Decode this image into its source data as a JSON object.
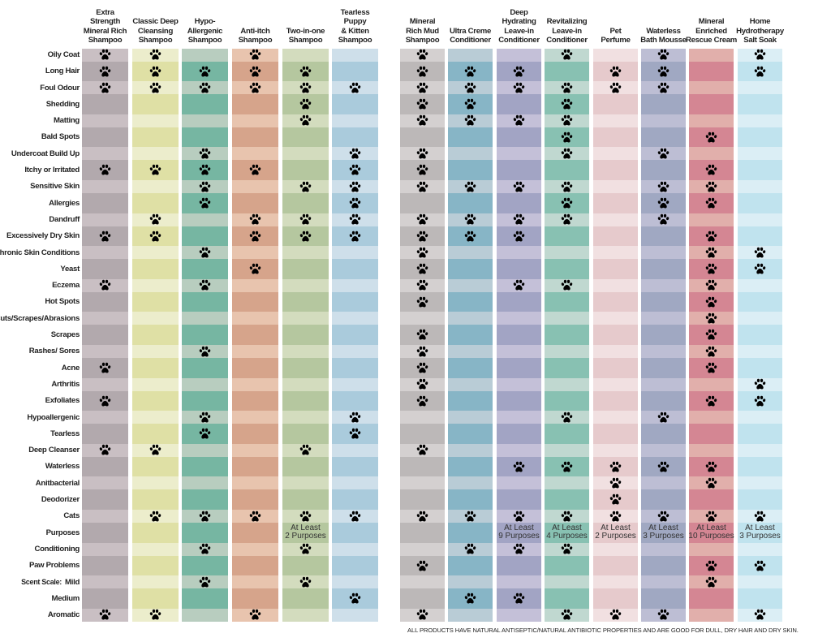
{
  "columns": [
    {
      "name": "Extra Strength Mineral Rich Shampoo",
      "lines": [
        "Extra",
        "Strength",
        "Mineral Rich",
        "Shampoo"
      ],
      "light": "#c9bfc3",
      "dark": "#b2a9ad"
    },
    {
      "name": "Classic Deep Cleansing Shampoo",
      "lines": [
        "Classic Deep",
        "Cleansing",
        "Shampoo"
      ],
      "light": "#ecedcc",
      "dark": "#dfe0a5"
    },
    {
      "name": "Hypo-Allergenic Shampoo",
      "lines": [
        "Hypo-",
        "Allergenic",
        "Shampoo"
      ],
      "light": "#b8cdbf",
      "dark": "#76b6a2"
    },
    {
      "name": "Anti-itch Shampoo",
      "lines": [
        "Anti-itch",
        "Shampoo"
      ],
      "light": "#e8c4ae",
      "dark": "#d6a48b"
    },
    {
      "name": "Two-in-one Shampoo",
      "lines": [
        "Two-in-one",
        "Shampoo"
      ],
      "light": "#d3dcbe",
      "dark": "#b5c79f"
    },
    {
      "name": "Tearless Puppy & Kitten Shampoo",
      "lines": [
        "Tearless",
        "Puppy",
        "& Kitten",
        "Shampoo"
      ],
      "light": "#cedfea",
      "dark": "#aacbdc"
    },
    {
      "name": "Mineral Rich Mud Shampoo",
      "lines": [
        "Mineral",
        "Rich Mud",
        "Shampoo"
      ],
      "light": "#d4d0d0",
      "dark": "#bcb8b8"
    },
    {
      "name": "Ultra Creme Conditioner",
      "lines": [
        "Ultra Creme",
        "Conditioner"
      ],
      "light": "#b9ccd6",
      "dark": "#87b5c6"
    },
    {
      "name": "Deep Hydrating Leave-in Conditioner",
      "lines": [
        "Deep",
        "Hydrating",
        "Leave-in",
        "Conditioner"
      ],
      "light": "#c4c0d8",
      "dark": "#a2a4c4"
    },
    {
      "name": "Revitalizing Leave-in Conditioner",
      "lines": [
        "Revitalizing",
        "Leave-in",
        "Conditioner"
      ],
      "light": "#c0d8d0",
      "dark": "#88c1b2"
    },
    {
      "name": "Pet Perfume",
      "lines": [
        "Pet",
        "Perfume"
      ],
      "light": "#f1e0e1",
      "dark": "#e6cacc"
    },
    {
      "name": "Waterless Bath Mousse",
      "lines": [
        "Waterless",
        "Bath Mousse"
      ],
      "light": "#bdbed4",
      "dark": "#a0a8c2"
    },
    {
      "name": "Mineral Enriched Rescue Cream",
      "lines": [
        "Mineral",
        "Enriched",
        "Rescue Cream"
      ],
      "light": "#e1afab",
      "dark": "#d48693"
    },
    {
      "name": "Home Hydrotherapy Salt Soak",
      "lines": [
        "Home",
        "Hydrotherapy",
        "Salt Soak"
      ],
      "light": "#dbeef5",
      "dark": "#c0e3ee"
    }
  ],
  "mark_icon": "paw-icon",
  "rows": [
    {
      "label": "Oily Coat",
      "paws": [
        0,
        1,
        3,
        6,
        9,
        11,
        13
      ]
    },
    {
      "label": "Long Hair",
      "paws": [
        0,
        1,
        2,
        3,
        4,
        6,
        7,
        8,
        10,
        11,
        13
      ]
    },
    {
      "label": "Foul Odour",
      "paws": [
        0,
        1,
        2,
        3,
        4,
        5,
        6,
        7,
        8,
        9,
        10,
        11
      ]
    },
    {
      "label": "Shedding",
      "paws": [
        4,
        6,
        7,
        9
      ]
    },
    {
      "label": "Matting",
      "paws": [
        4,
        6,
        7,
        8,
        9
      ]
    },
    {
      "label": "Bald Spots",
      "paws": [
        9,
        12
      ]
    },
    {
      "label": "Undercoat Build Up",
      "paws": [
        2,
        5,
        6,
        9,
        11
      ]
    },
    {
      "label": "Itchy or Irritated",
      "paws": [
        0,
        1,
        2,
        3,
        5,
        6,
        12
      ]
    },
    {
      "label": "Sensitive Skin",
      "paws": [
        2,
        4,
        5,
        6,
        7,
        8,
        9,
        11,
        12
      ]
    },
    {
      "label": "Allergies",
      "paws": [
        2,
        5,
        9,
        11,
        12
      ]
    },
    {
      "label": "Dandruff",
      "paws": [
        1,
        3,
        4,
        5,
        6,
        7,
        8,
        9,
        11
      ]
    },
    {
      "label": "Excessively Dry Skin",
      "paws": [
        0,
        1,
        3,
        4,
        5,
        6,
        7,
        8,
        12
      ]
    },
    {
      "label": "Chronic Skin Conditions",
      "paws": [
        2,
        6,
        12,
        13
      ]
    },
    {
      "label": "Yeast",
      "paws": [
        3,
        6,
        12,
        13
      ]
    },
    {
      "label": "Eczema",
      "paws": [
        0,
        2,
        6,
        8,
        9,
        12
      ]
    },
    {
      "label": "Hot Spots",
      "paws": [
        6,
        12
      ]
    },
    {
      "label": "Cuts/Scrapes/Abrasions",
      "paws": [
        12
      ]
    },
    {
      "label": "Scrapes",
      "paws": [
        6,
        12
      ]
    },
    {
      "label": "Rashes/ Sores",
      "paws": [
        2,
        6,
        12
      ]
    },
    {
      "label": "Acne",
      "paws": [
        0,
        6,
        12
      ]
    },
    {
      "label": "Arthritis",
      "paws": [
        6,
        13
      ]
    },
    {
      "label": "Exfoliates",
      "paws": [
        0,
        6,
        12,
        13
      ]
    },
    {
      "label": "Hypoallergenic",
      "paws": [
        2,
        5,
        9,
        11
      ]
    },
    {
      "label": "Tearless",
      "paws": [
        2,
        5
      ]
    },
    {
      "label": "Deep Cleanser",
      "paws": [
        0,
        1,
        4,
        6
      ]
    },
    {
      "label": "Waterless",
      "paws": [
        8,
        9,
        10,
        11,
        12
      ]
    },
    {
      "label": "Anitbacterial",
      "paws": [
        10,
        12
      ]
    },
    {
      "label": "Deodorizer",
      "paws": [
        10
      ]
    },
    {
      "label": "Cats",
      "paws": [
        1,
        2,
        3,
        4,
        5,
        6,
        7,
        8,
        9,
        10,
        11,
        12,
        13
      ]
    },
    {
      "label": "Purposes",
      "paws": [],
      "texts": [
        {
          "col": 4,
          "lines": [
            "At Least",
            "2 Purposes"
          ]
        },
        {
          "col": 8,
          "lines": [
            "At Least",
            "9 Purposes"
          ]
        },
        {
          "col": 9,
          "lines": [
            "At Least",
            "4 Purposes"
          ]
        },
        {
          "col": 10,
          "lines": [
            "At Least",
            "2 Purposes"
          ]
        },
        {
          "col": 11,
          "lines": [
            "At Least",
            "3 Purposes"
          ]
        },
        {
          "col": 12,
          "lines": [
            "At Least",
            "10 Purposes"
          ]
        },
        {
          "col": 13,
          "lines": [
            "At Least",
            "3 Purposes"
          ]
        }
      ]
    },
    {
      "label": "Conditioning",
      "paws": [
        2,
        4,
        7,
        8,
        9
      ]
    },
    {
      "label": "Paw Problems",
      "paws": [
        6,
        12,
        13
      ]
    },
    {
      "prefix": "Scent Scale:",
      "label": "Mild",
      "paws": [
        2,
        4,
        12
      ]
    },
    {
      "label": "Medium",
      "paws": [
        5,
        7,
        8
      ]
    },
    {
      "label": "Aromatic",
      "paws": [
        0,
        1,
        3,
        6,
        9,
        10,
        11,
        13
      ]
    }
  ],
  "footnote": "ALL PRODUCTS HAVE NATURAL ANTISEPTIC/NATURAL ANTIBIOTIC PROPERTIES AND ARE GOOD FOR DULL, DRY HAIR AND DRY SKIN."
}
